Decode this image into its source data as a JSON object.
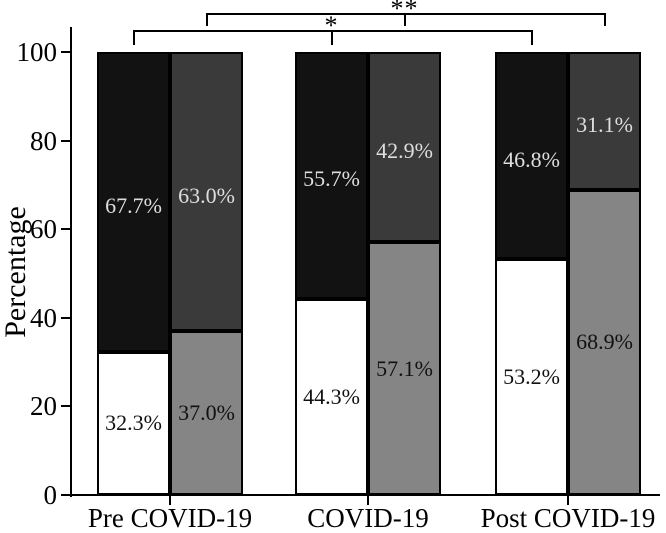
{
  "chart_data": {
    "type": "bar",
    "subtype": "grouped-stacked-percentage",
    "title": "",
    "ylabel": "Percentage",
    "ylim": [
      0,
      100
    ],
    "yticks": [
      "0",
      "20",
      "40",
      "60",
      "80",
      "100"
    ],
    "grid": false,
    "legend": "none",
    "categories": [
      "Pre COVID-19",
      "COVID-19",
      "Post COVID-19"
    ],
    "groups": [
      {
        "category": "Pre COVID-19",
        "bars": [
          {
            "name": "bar-1",
            "segments": [
              {
                "value": 32.3,
                "label": "32.3%",
                "color": "#ffffff",
                "text": "#111111"
              },
              {
                "value": 67.7,
                "label": "67.7%",
                "color": "#121212",
                "text": "#dedede"
              }
            ]
          },
          {
            "name": "bar-2",
            "segments": [
              {
                "value": 37.0,
                "label": "37.0%",
                "color": "#858585",
                "text": "#111111"
              },
              {
                "value": 63.0,
                "label": "63.0%",
                "color": "#3a3a3a",
                "text": "#dedede"
              }
            ]
          }
        ]
      },
      {
        "category": "COVID-19",
        "bars": [
          {
            "name": "bar-1",
            "segments": [
              {
                "value": 44.3,
                "label": "44.3%",
                "color": "#ffffff",
                "text": "#111111"
              },
              {
                "value": 55.7,
                "label": "55.7%",
                "color": "#121212",
                "text": "#dedede"
              }
            ]
          },
          {
            "name": "bar-2",
            "segments": [
              {
                "value": 57.1,
                "label": "57.1%",
                "color": "#858585",
                "text": "#111111"
              },
              {
                "value": 42.9,
                "label": "42.9%",
                "color": "#3a3a3a",
                "text": "#dedede"
              }
            ]
          }
        ]
      },
      {
        "category": "Post COVID-19",
        "bars": [
          {
            "name": "bar-1",
            "segments": [
              {
                "value": 53.2,
                "label": "53.2%",
                "color": "#ffffff",
                "text": "#111111"
              },
              {
                "value": 46.8,
                "label": "46.8%",
                "color": "#121212",
                "text": "#dedede"
              }
            ]
          },
          {
            "name": "bar-2",
            "segments": [
              {
                "value": 68.9,
                "label": "68.9%",
                "color": "#858585",
                "text": "#111111"
              },
              {
                "value": 31.1,
                "label": "31.1%",
                "color": "#3a3a3a",
                "text": "#dedede"
              }
            ]
          }
        ]
      }
    ],
    "significance": [
      {
        "symbol": "*",
        "bar_index": 0,
        "spans": "all three group first bars"
      },
      {
        "symbol": "**",
        "bar_index": 1,
        "spans": "all three group second bars"
      }
    ]
  }
}
